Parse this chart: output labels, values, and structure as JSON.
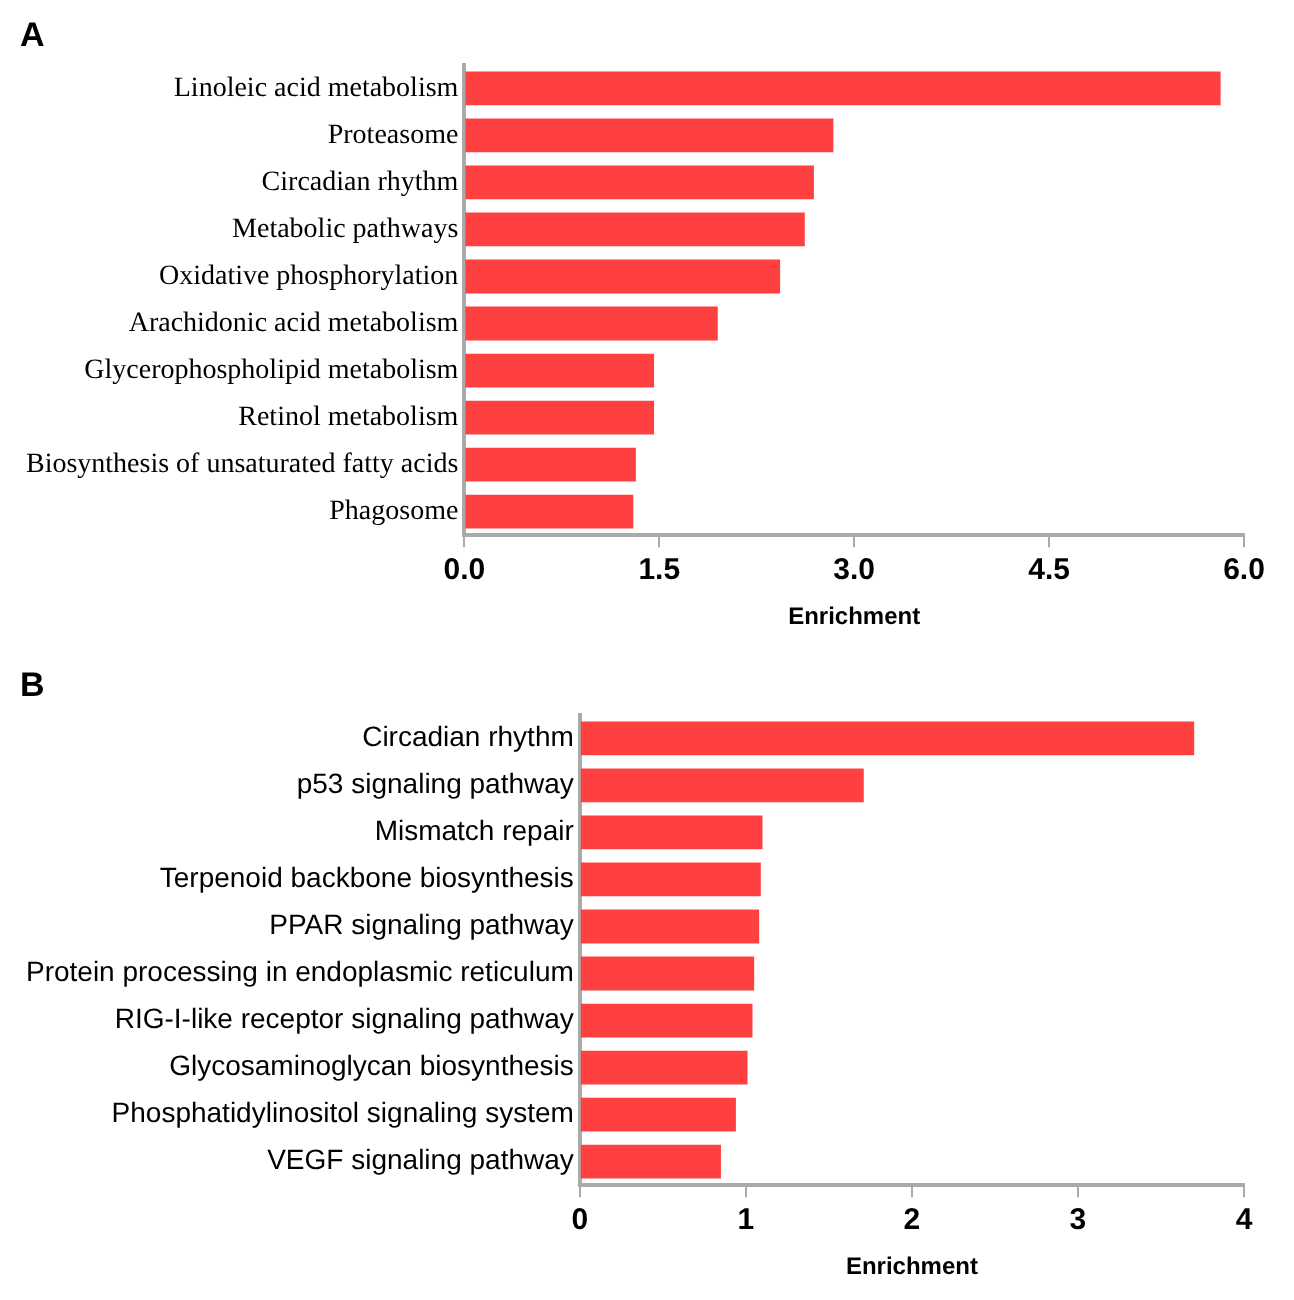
{
  "chart_data": [
    {
      "type": "bar",
      "title": "A",
      "orientation": "horizontal",
      "xlabel": "Enrichment",
      "categories": [
        "Linoleic acid metabolism",
        "Proteasome",
        "Circadian rhythm",
        "Metabolic pathways",
        "Oxidative phosphorylation",
        "Arachidonic acid metabolism",
        "Glycerophospholipid metabolism",
        "Retinol metabolism",
        "Biosynthesis of unsaturated fatty acids",
        "Phagosome"
      ],
      "values": [
        5.82,
        2.84,
        2.69,
        2.62,
        2.43,
        1.95,
        1.46,
        1.46,
        1.32,
        1.3
      ],
      "color": "#ff4040",
      "xlim": [
        0,
        6
      ],
      "xticks": [
        {
          "value": 0,
          "label": "0.0"
        },
        1.5,
        {
          "value": 3,
          "label": "3.0"
        },
        4.5,
        {
          "value": 6,
          "label": "6.0"
        }
      ],
      "grid": false,
      "legend": false
    },
    {
      "type": "bar",
      "title": "B",
      "orientation": "horizontal",
      "xlabel": "Enrichment",
      "categories": [
        "Circadian rhythm",
        "p53 signaling pathway",
        "Mismatch repair",
        "Terpenoid backbone biosynthesis",
        "PPAR signaling pathway",
        "Protein processing in endoplasmic reticulum",
        "RIG-I-like receptor signaling pathway",
        "Glycosaminoglycan biosynthesis",
        "Phosphatidylinositol signaling system",
        "VEGF signaling pathway"
      ],
      "values": [
        3.7,
        1.71,
        1.1,
        1.09,
        1.08,
        1.05,
        1.04,
        1.01,
        0.94,
        0.85
      ],
      "color": "#ff4040",
      "xlim": [
        0,
        4
      ],
      "xticks": [
        0,
        1,
        2,
        3,
        4
      ],
      "grid": false,
      "legend": false
    }
  ]
}
